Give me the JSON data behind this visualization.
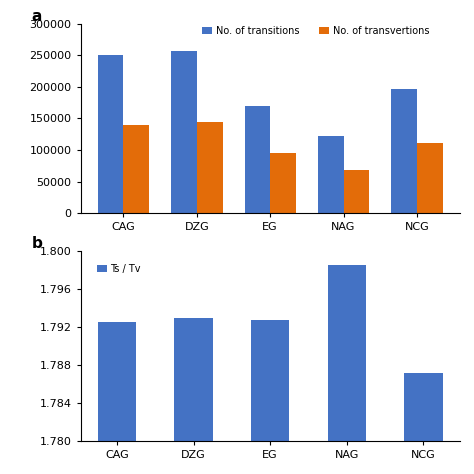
{
  "categories": [
    "CAG",
    "DZG",
    "EG",
    "NAG",
    "NCG"
  ],
  "transitions": [
    250000,
    257000,
    170000,
    122000,
    197000
  ],
  "transversions": [
    140000,
    144000,
    95000,
    68000,
    111000
  ],
  "ts_tv": [
    1.7925,
    1.793,
    1.7927,
    1.7985,
    1.7872
  ],
  "bar_color_blue": "#4472C4",
  "bar_color_orange": "#E36C09",
  "label_transitions": "No. of transitions",
  "label_transversions": "No. of transvertions",
  "label_ts_tv": "Ts / Tv",
  "panel_a_label": "a",
  "panel_b_label": "b",
  "ylim_a": [
    0,
    300000
  ],
  "yticks_a": [
    0,
    50000,
    100000,
    150000,
    200000,
    250000,
    300000
  ],
  "ylim_b": [
    1.78,
    1.8
  ],
  "yticks_b": [
    1.78,
    1.784,
    1.788,
    1.792,
    1.796,
    1.8
  ],
  "fig_width": 4.74,
  "fig_height": 4.74
}
